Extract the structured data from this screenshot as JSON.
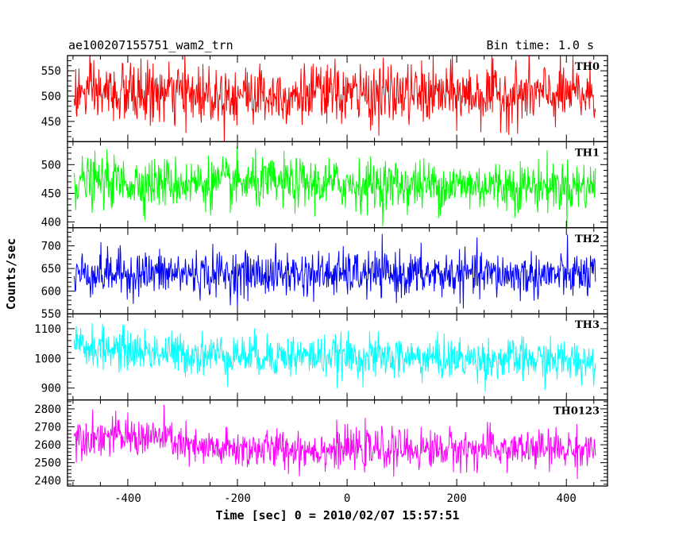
{
  "chart_data": {
    "type": "line",
    "title": "ae100207155751_wam2_trn",
    "subtitle": "Bin time: 1.0 s",
    "xlabel": "Time [sec] 0 = 2010/02/07 15:57:51",
    "ylabel": "Counts/sec",
    "xlim": [
      -510,
      475
    ],
    "xticks": [
      -400,
      -200,
      0,
      200,
      400
    ],
    "x_range": [
      -498,
      453
    ],
    "panels": [
      {
        "name": "TH0",
        "color": "#ff0000",
        "ylim": [
          410,
          580
        ],
        "yticks": [
          450,
          500,
          550
        ],
        "mean_profile": [
          [
            -498,
            505
          ],
          [
            453,
            502
          ]
        ],
        "noise_sd": 30
      },
      {
        "name": "TH1",
        "color": "#00ff00",
        "ylim": [
          390,
          540
        ],
        "yticks": [
          400,
          450,
          500
        ],
        "mean_profile": [
          [
            -498,
            470
          ],
          [
            453,
            462
          ]
        ],
        "noise_sd": 22
      },
      {
        "name": "TH2",
        "color": "#0000ff",
        "ylim": [
          550,
          740
        ],
        "yticks": [
          550,
          600,
          650,
          700
        ],
        "mean_profile": [
          [
            -498,
            640
          ],
          [
            453,
            635
          ]
        ],
        "noise_sd": 25
      },
      {
        "name": "TH3",
        "color": "#00ffff",
        "ylim": [
          860,
          1150
        ],
        "yticks": [
          900,
          1000,
          1100
        ],
        "mean_profile": [
          [
            -498,
            1040
          ],
          [
            -300,
            1015
          ],
          [
            453,
            990
          ]
        ],
        "noise_sd": 35
      },
      {
        "name": "TH0123",
        "color": "#ff00ff",
        "ylim": [
          2370,
          2850
        ],
        "yticks": [
          2400,
          2500,
          2600,
          2700,
          2800
        ],
        "mean_profile": [
          [
            -498,
            2650
          ],
          [
            -330,
            2640
          ],
          [
            -280,
            2575
          ],
          [
            453,
            2575
          ]
        ],
        "noise_sd": 55
      }
    ]
  }
}
